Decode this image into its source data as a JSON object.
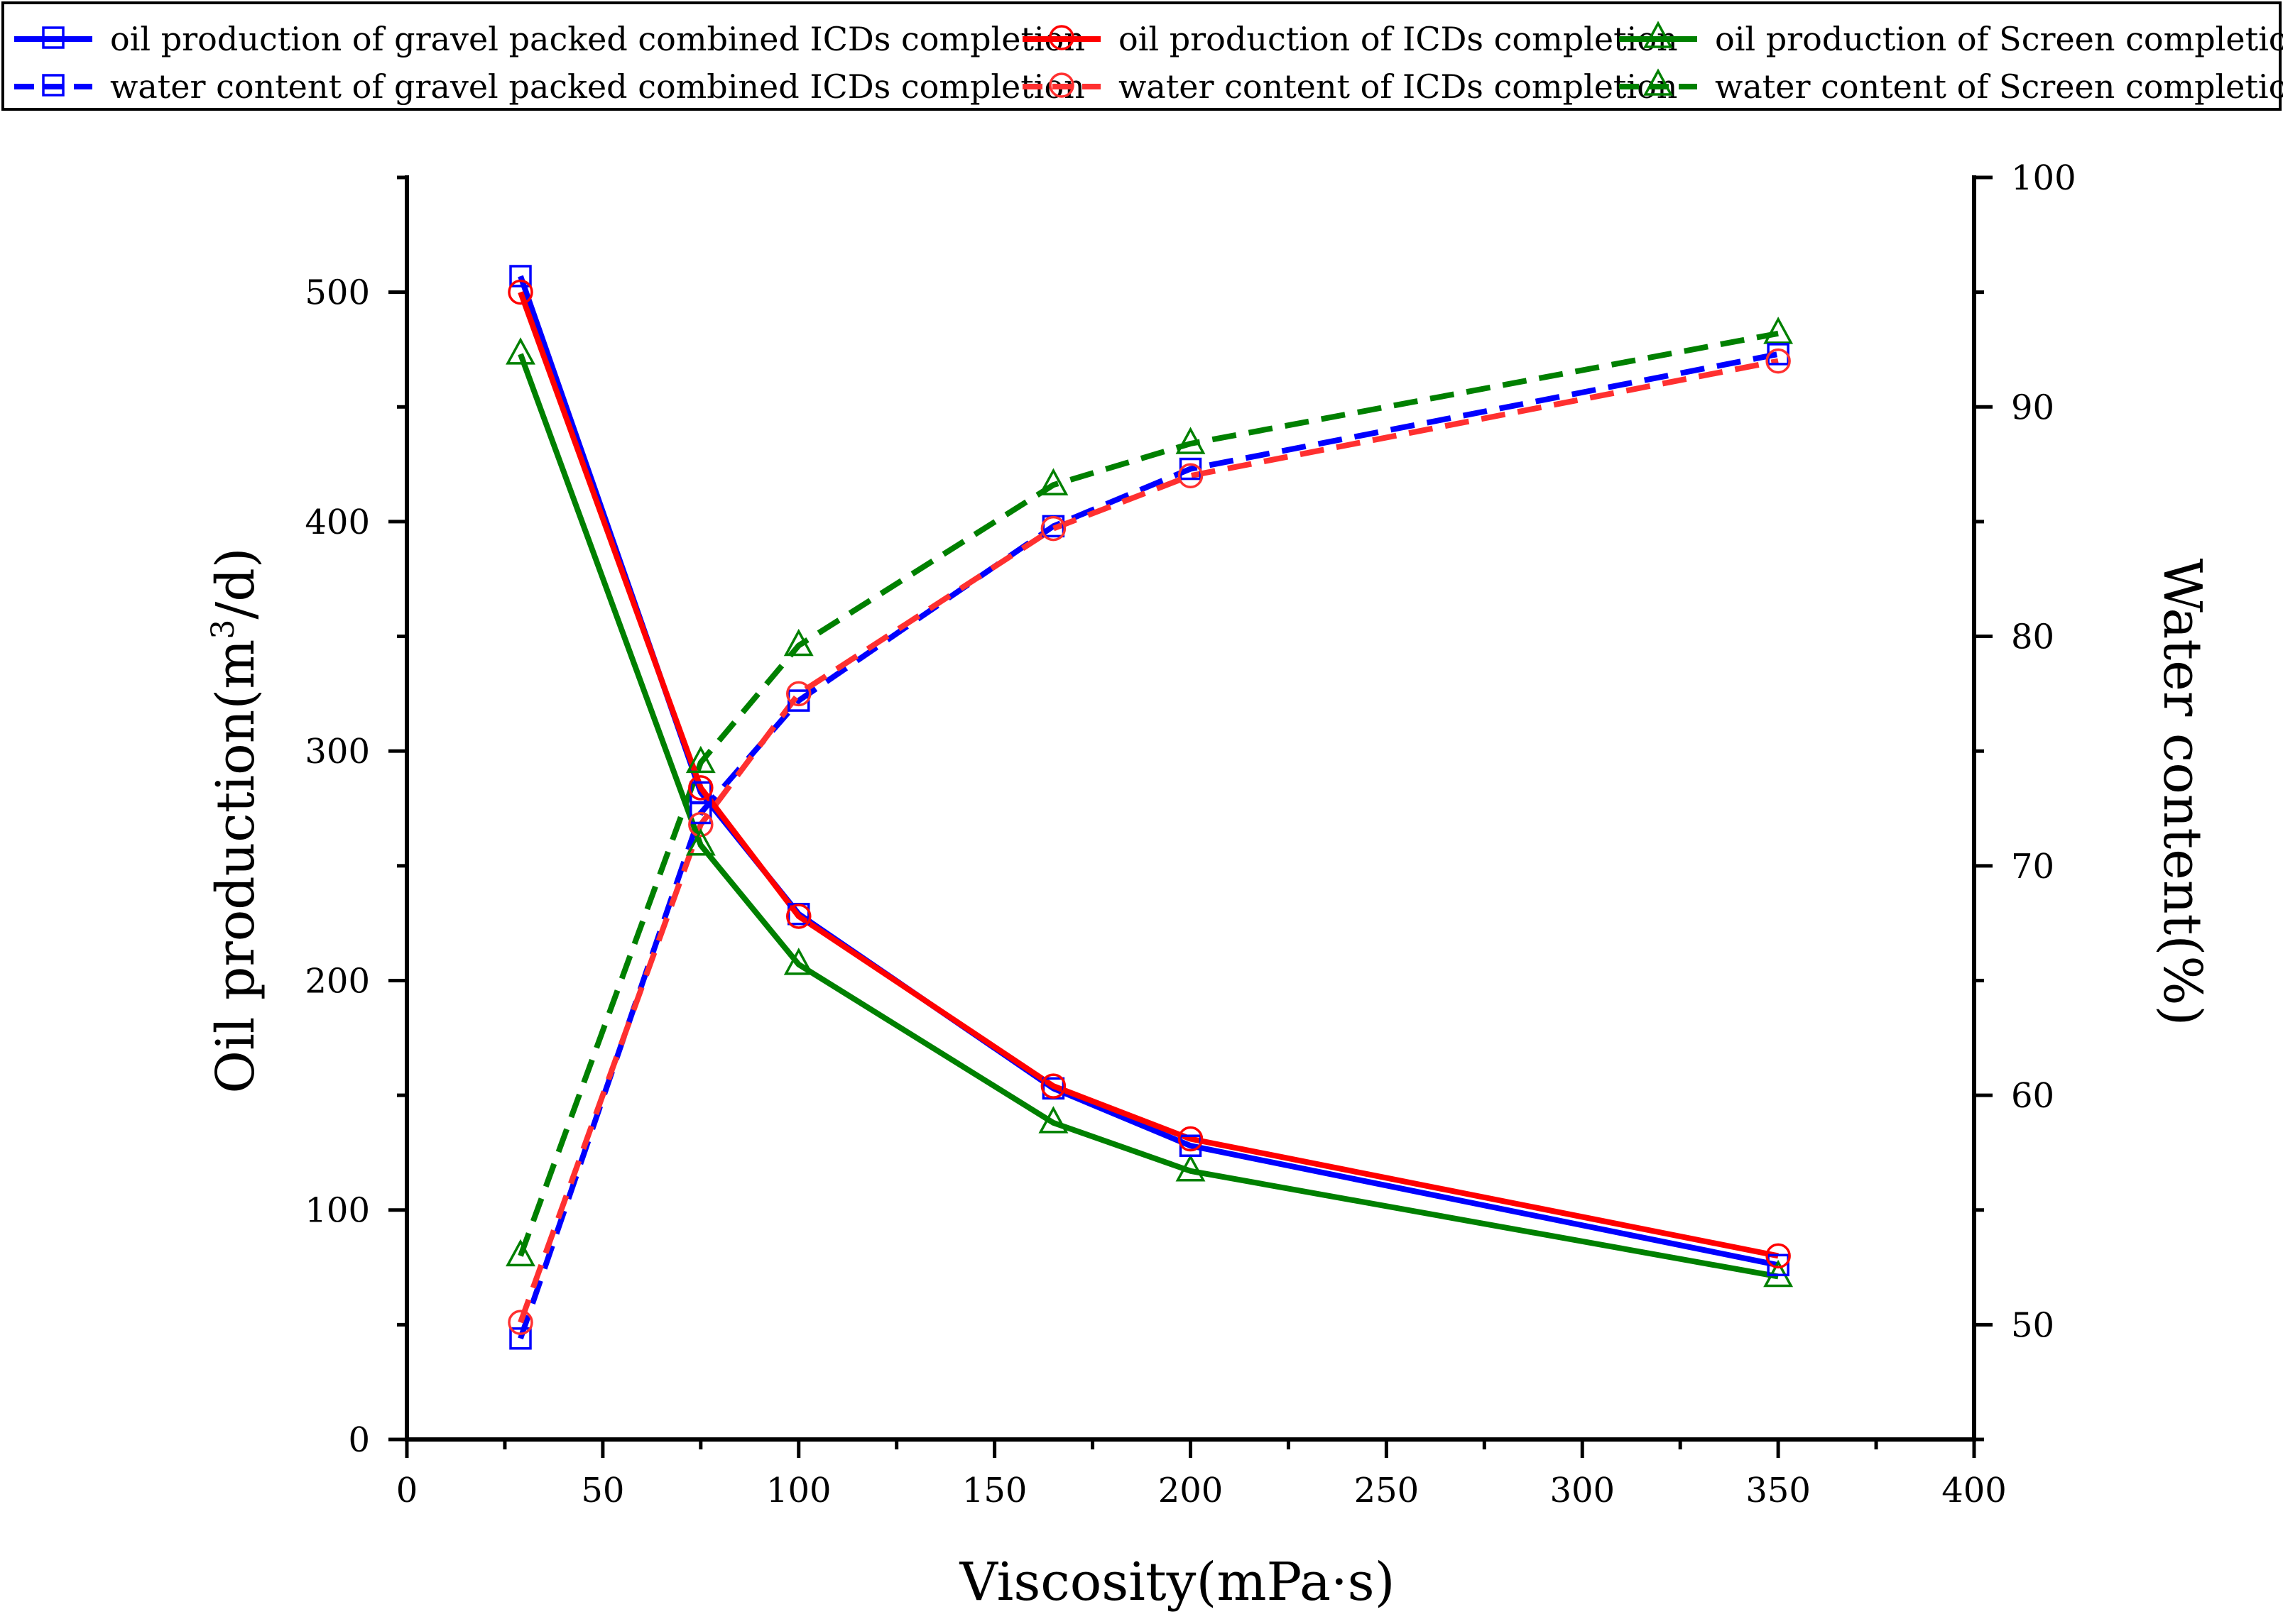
{
  "chart_data": {
    "type": "line",
    "x": [
      29,
      75,
      100,
      165,
      200,
      350
    ],
    "xlabel": "Viscosity(mPa·s)",
    "ylabel_left": "Oil production(m³/d)",
    "ylabel_left_base": "Oil production(m",
    "ylabel_left_sup": "3",
    "ylabel_left_tail": "/d)",
    "ylabel_right": "Water content(%)",
    "xlim": [
      0,
      400
    ],
    "ylim_left": [
      0,
      550
    ],
    "ylim_right": [
      45,
      100
    ],
    "xticks": [
      0,
      50,
      100,
      150,
      200,
      250,
      300,
      350,
      400
    ],
    "yticks_left": [
      0,
      100,
      200,
      300,
      400,
      500
    ],
    "yticks_right": [
      50,
      60,
      70,
      80,
      90,
      100
    ],
    "grid": false,
    "legend_position": "top",
    "series": [
      {
        "name": "oil production of gravel packed combined ICDs completion",
        "axis": "left",
        "style": "solid",
        "marker": "square",
        "color": "#0000ff",
        "values": [
          507,
          282,
          229,
          153,
          128,
          76
        ]
      },
      {
        "name": "oil production of ICDs completion",
        "axis": "left",
        "style": "solid",
        "marker": "circle",
        "color": "#ff0000",
        "values": [
          500,
          284,
          228,
          154,
          131,
          80
        ]
      },
      {
        "name": "oil production of Screen completion",
        "axis": "left",
        "style": "solid",
        "marker": "triangle",
        "color": "#008000",
        "values": [
          473,
          259,
          207,
          138,
          117,
          71
        ]
      },
      {
        "name": "water content of gravel packed combined ICDs completion",
        "axis": "right",
        "style": "dashed",
        "marker": "square",
        "color": "#0000ff",
        "values": [
          49.4,
          72.3,
          77.2,
          84.8,
          87.3,
          92.3
        ]
      },
      {
        "name": "water content of ICDs completion",
        "axis": "right",
        "style": "dashed",
        "marker": "circle",
        "color": "#ff3030",
        "values": [
          50.1,
          71.8,
          77.5,
          84.7,
          87.0,
          92.0
        ]
      },
      {
        "name": "water content of Screen completion",
        "axis": "right",
        "style": "dashed",
        "marker": "triangle",
        "color": "#008000",
        "values": [
          53.0,
          74.5,
          79.6,
          86.6,
          88.4,
          93.2
        ]
      }
    ]
  }
}
